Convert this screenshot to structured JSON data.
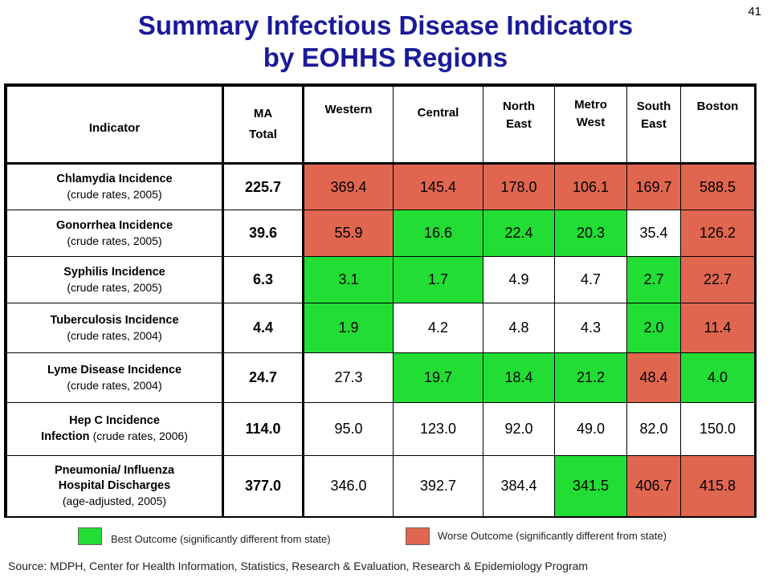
{
  "page_number": "41",
  "title_line1": "Summary Infectious Disease Indicators",
  "title_line2": "by EOHHS Regions",
  "colors": {
    "title": "#1a1a99",
    "best": "#22dd33",
    "worse": "#e06650",
    "neutral": "#ffffff"
  },
  "headers": {
    "indicator": "Indicator",
    "ma_line1": "MA",
    "ma_line2": "Total",
    "regions": [
      {
        "line1": "Western",
        "line2": ""
      },
      {
        "line1": "Central",
        "line2": ""
      },
      {
        "line1": "North",
        "line2": "East"
      },
      {
        "line1": "Metro",
        "line2": "West"
      },
      {
        "line1": "South",
        "line2": "East"
      },
      {
        "line1": "Boston",
        "line2": ""
      }
    ]
  },
  "rows": [
    {
      "name": "Chlamydia Incidence",
      "name_line2": "",
      "note": "(crude rates, 2005)",
      "ma": "225.7",
      "values": [
        "369.4",
        "145.4",
        "178.0",
        "106.1",
        "169.7",
        "588.5"
      ],
      "status": [
        "worse",
        "worse",
        "worse",
        "worse",
        "worse",
        "worse"
      ]
    },
    {
      "name": "Gonorrhea Incidence",
      "name_line2": "",
      "note": "(crude rates, 2005)",
      "ma": "39.6",
      "values": [
        "55.9",
        "16.6",
        "22.4",
        "20.3",
        "35.4",
        "126.2"
      ],
      "status": [
        "worse",
        "best",
        "best",
        "best",
        "neutral",
        "worse"
      ]
    },
    {
      "name": "Syphilis  Incidence",
      "name_line2": "",
      "note": "(crude rates, 2005)",
      "ma": "6.3",
      "values": [
        "3.1",
        "1.7",
        "4.9",
        "4.7",
        "2.7",
        "22.7"
      ],
      "status": [
        "best",
        "best",
        "neutral",
        "neutral",
        "best",
        "worse"
      ]
    },
    {
      "name": "Tuberculosis Incidence",
      "name_line2": "",
      "note": "(crude rates, 2004)",
      "ma": "4.4",
      "values": [
        "1.9",
        "4.2",
        "4.8",
        "4.3",
        "2.0",
        "11.4"
      ],
      "status": [
        "best",
        "neutral",
        "neutral",
        "neutral",
        "best",
        "worse"
      ]
    },
    {
      "name": "Lyme Disease Incidence",
      "name_line2": "",
      "note": "(crude rates, 2004)",
      "ma": "24.7",
      "values": [
        "27.3",
        "19.7",
        "18.4",
        "21.2",
        "48.4",
        "4.0"
      ],
      "status": [
        "neutral",
        "best",
        "best",
        "best",
        "worse",
        "best"
      ]
    },
    {
      "name": "Hep C Incidence",
      "name_line2": "Infection",
      "note": "(crude rates, 2006)",
      "ma": "114.0",
      "values": [
        "95.0",
        "123.0",
        "92.0",
        "49.0",
        "82.0",
        "150.0"
      ],
      "status": [
        "neutral",
        "neutral",
        "neutral",
        "neutral",
        "neutral",
        "neutral"
      ]
    },
    {
      "name": "Pneumonia/ Influenza",
      "name_line2": "Hospital Discharges",
      "note": "(age-adjusted, 2005)",
      "ma": "377.0",
      "values": [
        "346.0",
        "392.7",
        "384.4",
        "341.5",
        "406.7",
        "415.8"
      ],
      "status": [
        "neutral",
        "neutral",
        "neutral",
        "best",
        "worse",
        "worse"
      ]
    }
  ],
  "legend": {
    "best_label": "Best Outcome (significantly different from state)",
    "worse_label": "Worse Outcome (significantly different from state)"
  },
  "source": "Source:  MDPH, Center for Health Information, Statistics, Research & Evaluation, Research & Epidemiology Program"
}
